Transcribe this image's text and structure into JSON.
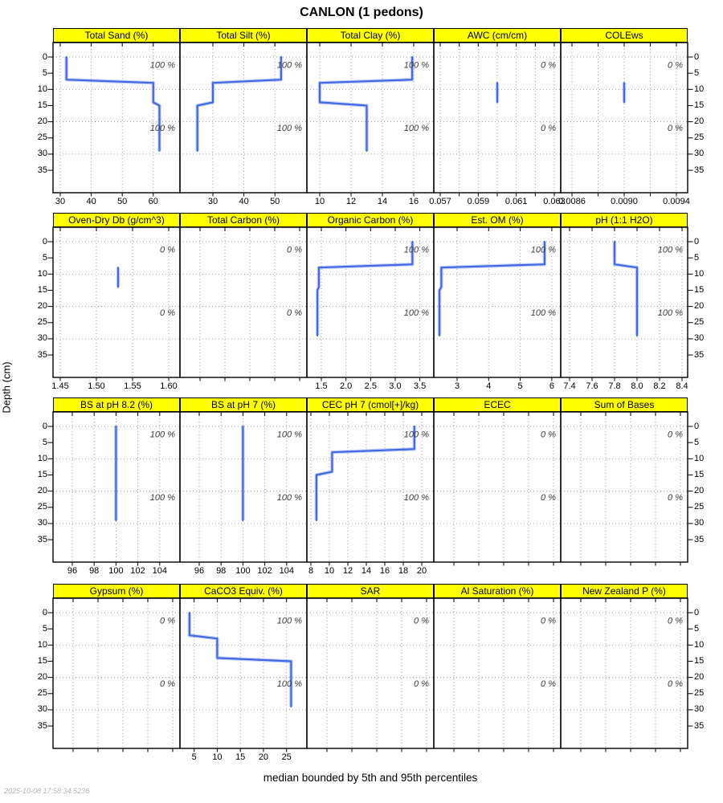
{
  "title": "CANLON (1 pedons)",
  "ylabel": "Depth (cm)",
  "footer": "median bounded by 5th and 95th percentiles",
  "timestamp": "2025-10-08 17:58:34.5236",
  "colors": {
    "strip_bg": "#FFFF00",
    "strip_border": "#000000",
    "median_line": "#4169E1",
    "percentile_band": "rgba(65,105,225,0.30)",
    "grid": "#999999",
    "pct_label": "#3d3d3d",
    "axis_text": "#000000",
    "timestamp_text": "#b5b5b5"
  },
  "depth_axis": {
    "unit": "cm",
    "ticks": [
      0,
      5,
      10,
      15,
      20,
      25,
      30,
      35
    ],
    "grid_depths": [
      0,
      10,
      20,
      30
    ]
  },
  "chart_data": {
    "type": "line",
    "note": "soil property depth profiles (x = property value, y = depth cm); median bounded by 5th and 95th percentiles; pct labels give % of pedons with data",
    "rows": [
      {
        "panels": [
          {
            "title": "Total Sand (%)",
            "pct": "100 %",
            "scale": {
              "v0": 30,
              "p0": 9,
              "v1": 60,
              "p1": 124.8
            },
            "ticks": [
              30,
              40,
              50,
              60
            ],
            "tick_labels": [
              "30",
              "40",
              "50",
              "60"
            ],
            "line": [
              [
                0,
                32
              ],
              [
                7,
                32
              ],
              [
                8,
                60
              ],
              [
                14,
                60
              ],
              [
                15,
                62
              ],
              [
                29,
                62
              ]
            ]
          },
          {
            "title": "Total Silt (%)",
            "pct": "100 %",
            "scale": {
              "v0": 30,
              "p0": 41,
              "v1": 50,
              "p1": 118.2
            },
            "ticks": [
              30,
              40,
              50
            ],
            "tick_labels": [
              "30",
              "40",
              "50"
            ],
            "line": [
              [
                0,
                52
              ],
              [
                7,
                52
              ],
              [
                8,
                30
              ],
              [
                14,
                30
              ],
              [
                15,
                25
              ],
              [
                29,
                25
              ]
            ]
          },
          {
            "title": "Total Clay (%)",
            "pct": "100 %",
            "scale": {
              "v0": 10,
              "p0": 16,
              "v1": 16,
              "p1": 133
            },
            "ticks": [
              10,
              12,
              14,
              16
            ],
            "tick_labels": [
              "10",
              "12",
              "14",
              "16"
            ],
            "line": [
              [
                0,
                15.9
              ],
              [
                7,
                15.9
              ],
              [
                8,
                10
              ],
              [
                14,
                10
              ],
              [
                15,
                13
              ],
              [
                29,
                13
              ]
            ]
          },
          {
            "title": "AWC (cm/cm)",
            "pct": "0 %",
            "scale": {
              "v0": 0.057,
              "p0": 8,
              "v1": 0.063,
              "p1": 150
            },
            "ticks": [
              0.057,
              0.058,
              0.059,
              0.06,
              0.061,
              0.062,
              0.063
            ],
            "tick_labels": [
              "0.057",
              "",
              "0.059",
              "",
              "0.061",
              "",
              "0.063"
            ],
            "line": [
              [
                8,
                0.06
              ],
              [
                14,
                0.06
              ]
            ]
          },
          {
            "title": "COLEws",
            "pct": "0 %",
            "scale": {
              "v0": 0.0086,
              "p0": 14,
              "v1": 0.0094,
              "p1": 144
            },
            "ticks": [
              0.0086,
              0.0088,
              0.009,
              0.0092,
              0.0094
            ],
            "tick_labels": [
              "0.0086",
              "",
              "0.0090",
              "",
              "0.0094"
            ],
            "line": [
              [
                8,
                0.009
              ],
              [
                14,
                0.009
              ]
            ]
          }
        ]
      },
      {
        "panels": [
          {
            "title": "Oven-Dry Db (g/cm^3)",
            "pct": "0 %",
            "scale": {
              "v0": 1.45,
              "p0": 9,
              "v1": 1.6,
              "p1": 144
            },
            "ticks": [
              1.45,
              1.5,
              1.55,
              1.6
            ],
            "tick_labels": [
              "1.45",
              "1.50",
              "1.55",
              "1.60"
            ],
            "line": [
              [
                8,
                1.53
              ],
              [
                14,
                1.53
              ]
            ]
          },
          {
            "title": "Total Carbon (%)",
            "pct": "0 %",
            "scale": {
              "v0": 1,
              "p0": 25,
              "v1": 5,
              "p1": 149
            },
            "ticks": [
              1,
              2,
              3,
              4,
              5
            ],
            "tick_labels": [
              "",
              "",
              "",
              "",
              ""
            ],
            "line": null
          },
          {
            "title": "Organic Carbon (%)",
            "pct": "100 %",
            "scale": {
              "v0": 1.5,
              "p0": 18,
              "v1": 3.5,
              "p1": 140.6
            },
            "ticks": [
              1.5,
              2,
              2.5,
              3,
              3.5
            ],
            "tick_labels": [
              "1.5",
              "2.0",
              "2.5",
              "3.0",
              "3.5"
            ],
            "line": [
              [
                0,
                3.35
              ],
              [
                7,
                3.35
              ],
              [
                8,
                1.45
              ],
              [
                14,
                1.45
              ],
              [
                15,
                1.42
              ],
              [
                29,
                1.42
              ]
            ]
          },
          {
            "title": "Est. OM (%)",
            "pct": "100 %",
            "scale": {
              "v0": 3,
              "p0": 29,
              "v1": 6,
              "p1": 146.9
            },
            "ticks": [
              3,
              4,
              5,
              6
            ],
            "tick_labels": [
              "3",
              "4",
              "5",
              "6"
            ],
            "line": [
              [
                0,
                5.77
              ],
              [
                7,
                5.77
              ],
              [
                8,
                2.5
              ],
              [
                14,
                2.5
              ],
              [
                15,
                2.44
              ],
              [
                29,
                2.44
              ]
            ]
          },
          {
            "title": "pH (1:1 H2O)",
            "pct": "100 %",
            "scale": {
              "v0": 7.4,
              "p0": 11,
              "v1": 8.4,
              "p1": 151
            },
            "ticks": [
              7.4,
              7.6,
              7.8,
              8,
              8.2,
              8.4
            ],
            "tick_labels": [
              "7.4",
              "7.6",
              "7.8",
              "8.0",
              "8.2",
              "8.4"
            ],
            "line": [
              [
                0,
                7.8
              ],
              [
                7,
                7.8
              ],
              [
                8,
                8
              ],
              [
                14,
                8
              ],
              [
                15,
                8
              ],
              [
                29,
                8
              ]
            ]
          }
        ]
      },
      {
        "panels": [
          {
            "title": "BS at pH 8.2 (%)",
            "pct": "100 %",
            "scale": {
              "v0": 96,
              "p0": 24,
              "v1": 104,
              "p1": 132.8
            },
            "ticks": [
              96,
              98,
              100,
              102,
              104
            ],
            "tick_labels": [
              "96",
              "98",
              "100",
              "102",
              "104"
            ],
            "line": [
              [
                0,
                100
              ],
              [
                29,
                100
              ]
            ]
          },
          {
            "title": "BS at pH 7 (%)",
            "pct": "100 %",
            "scale": {
              "v0": 96,
              "p0": 24,
              "v1": 104,
              "p1": 132.8
            },
            "ticks": [
              96,
              98,
              100,
              102,
              104
            ],
            "tick_labels": [
              "96",
              "98",
              "100",
              "102",
              "104"
            ],
            "line": [
              [
                0,
                100
              ],
              [
                29,
                100
              ]
            ]
          },
          {
            "title": "CEC pH 7 (cmol[+]/kg)",
            "pct": "100 %",
            "scale": {
              "v0": 8,
              "p0": 5,
              "v1": 20,
              "p1": 143
            },
            "ticks": [
              8,
              10,
              12,
              14,
              16,
              18,
              20
            ],
            "tick_labels": [
              "8",
              "10",
              "12",
              "14",
              "16",
              "18",
              "20"
            ],
            "line": [
              [
                0,
                19.2
              ],
              [
                7,
                19.2
              ],
              [
                8,
                10.3
              ],
              [
                14,
                10.3
              ],
              [
                15,
                8.6
              ],
              [
                29,
                8.6
              ]
            ]
          },
          {
            "title": "ECEC",
            "pct": "0 %",
            "scale": {
              "v0": 1,
              "p0": 25,
              "v1": 5,
              "p1": 149
            },
            "ticks": [
              1,
              2,
              3,
              4,
              5
            ],
            "tick_labels": [
              "",
              "",
              "",
              "",
              ""
            ],
            "line": null
          },
          {
            "title": "Sum of Bases",
            "pct": "0 %",
            "scale": {
              "v0": 1,
              "p0": 25,
              "v1": 5,
              "p1": 149
            },
            "ticks": [
              1,
              2,
              3,
              4,
              5
            ],
            "tick_labels": [
              "",
              "",
              "",
              "",
              ""
            ],
            "line": null
          }
        ]
      },
      {
        "panels": [
          {
            "title": "Gypsum (%)",
            "pct": "0 %",
            "scale": {
              "v0": 1,
              "p0": 25,
              "v1": 5,
              "p1": 149
            },
            "ticks": [
              1,
              2,
              3,
              4,
              5
            ],
            "tick_labels": [
              "",
              "",
              "",
              "",
              ""
            ],
            "line": null
          },
          {
            "title": "CaCO3 Equiv. (%)",
            "pct": "100 %",
            "scale": {
              "v0": 5,
              "p0": 17.7,
              "v1": 25,
              "p1": 132.7
            },
            "ticks": [
              5,
              10,
              15,
              20,
              25
            ],
            "tick_labels": [
              "5",
              "10",
              "15",
              "20",
              "25"
            ],
            "line": [
              [
                0,
                4
              ],
              [
                7,
                4
              ],
              [
                8,
                10
              ],
              [
                14,
                10
              ],
              [
                15,
                26
              ],
              [
                29,
                26
              ]
            ]
          },
          {
            "title": "SAR",
            "pct": "0 %",
            "scale": {
              "v0": 1,
              "p0": 25,
              "v1": 5,
              "p1": 149
            },
            "ticks": [
              1,
              2,
              3,
              4,
              5
            ],
            "tick_labels": [
              "",
              "",
              "",
              "",
              ""
            ],
            "line": null
          },
          {
            "title": "Al Saturation (%)",
            "pct": "0 %",
            "scale": {
              "v0": 1,
              "p0": 25,
              "v1": 5,
              "p1": 149
            },
            "ticks": [
              1,
              2,
              3,
              4,
              5
            ],
            "tick_labels": [
              "",
              "",
              "",
              "",
              ""
            ],
            "line": null
          },
          {
            "title": "New Zealand P (%)",
            "pct": "0 %",
            "scale": {
              "v0": 1,
              "p0": 25,
              "v1": 5,
              "p1": 149
            },
            "ticks": [
              1,
              2,
              3,
              4,
              5
            ],
            "tick_labels": [
              "",
              "",
              "",
              "",
              ""
            ],
            "line": null
          }
        ]
      }
    ]
  }
}
